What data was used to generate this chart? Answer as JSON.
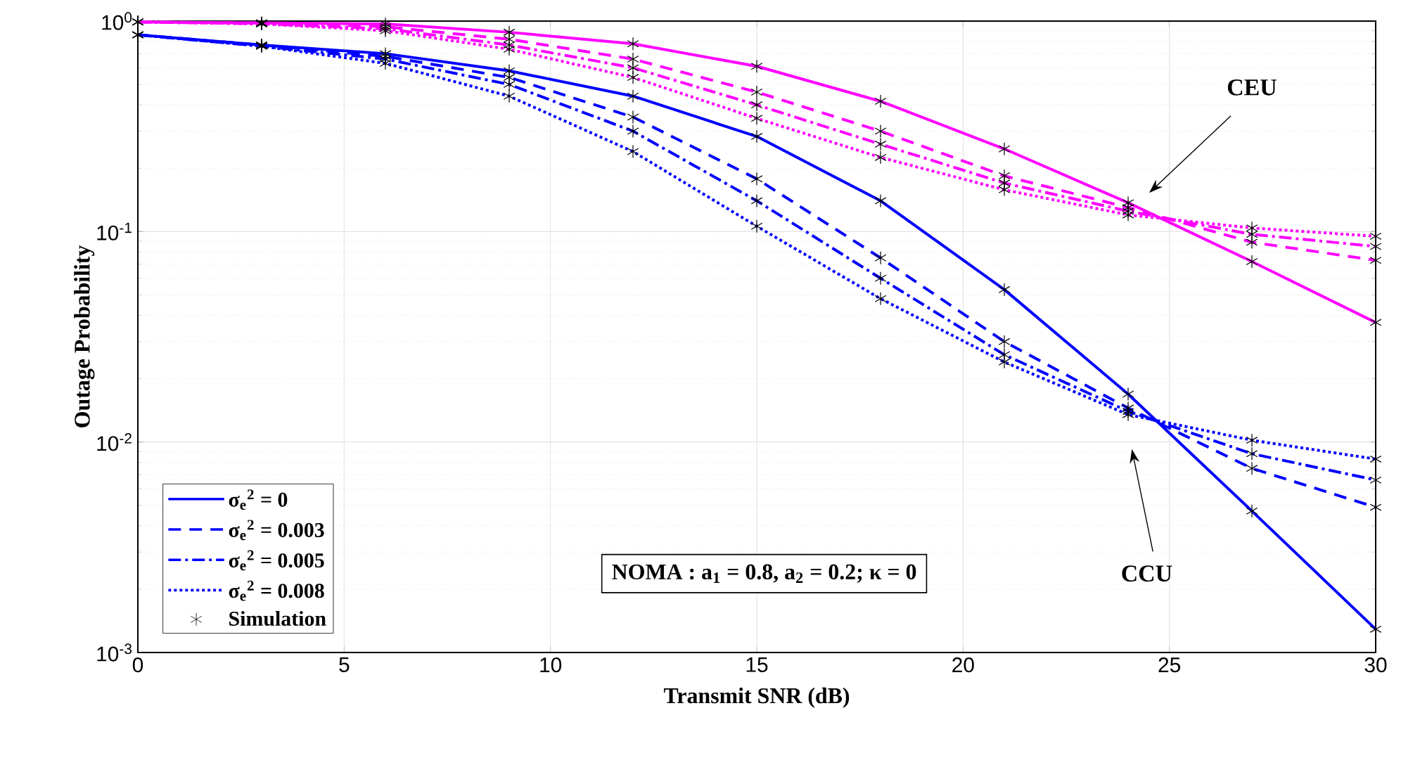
{
  "chart_data": {
    "type": "line",
    "xlabel": "Transmit SNR (dB)",
    "ylabel": "Outage Probability",
    "x": [
      0,
      3,
      6,
      9,
      12,
      15,
      18,
      21,
      24,
      27,
      30
    ],
    "series": [
      {
        "name": "σ$_{e}$$^{2}$ = 0",
        "color": "#0000ff",
        "line_style": "solid",
        "values": [
          0.86,
          0.77,
          0.7,
          0.58,
          0.44,
          0.283,
          0.14,
          0.053,
          0.0169,
          0.0047,
          0.00129
        ]
      },
      {
        "name": "σ$_{e}$$^{2}$ = 0.003",
        "color": "#0000ff",
        "line_style": "dashed",
        "values": [
          0.86,
          0.77,
          0.68,
          0.54,
          0.35,
          0.178,
          0.075,
          0.03,
          0.0145,
          0.0075,
          0.0049
        ]
      },
      {
        "name": "σ$_{e}$$^{2}$ = 0.005",
        "color": "#0000ff",
        "line_style": "dashdot",
        "values": [
          0.86,
          0.76,
          0.66,
          0.5,
          0.3,
          0.14,
          0.06,
          0.026,
          0.014,
          0.0088,
          0.0066
        ]
      },
      {
        "name": "σ$_{e}$$^{2}$ = 0.008",
        "color": "#0000ff",
        "line_style": "dotted",
        "values": [
          0.86,
          0.76,
          0.63,
          0.44,
          0.24,
          0.106,
          0.048,
          0.024,
          0.0135,
          0.0102,
          0.0083
        ]
      },
      {
        "color": "#ff00ff",
        "line_style": "solid",
        "values": [
          0.99,
          0.98,
          0.97,
          0.885,
          0.78,
          0.61,
          0.416,
          0.247,
          0.137,
          0.072,
          0.037
        ]
      },
      {
        "color": "#ff00ff",
        "line_style": "dashed",
        "values": [
          0.99,
          0.98,
          0.94,
          0.82,
          0.66,
          0.46,
          0.3,
          0.184,
          0.13,
          0.089,
          0.073
        ]
      },
      {
        "color": "#ff00ff",
        "line_style": "dashdot",
        "values": [
          0.99,
          0.97,
          0.92,
          0.77,
          0.6,
          0.4,
          0.26,
          0.17,
          0.125,
          0.097,
          0.085
        ]
      },
      {
        "color": "#ff00ff",
        "line_style": "dotted",
        "values": [
          0.99,
          0.97,
          0.9,
          0.735,
          0.54,
          0.345,
          0.225,
          0.158,
          0.12,
          0.104,
          0.095
        ]
      },
      {
        "name": "Simulation",
        "type": "scatter",
        "marker": "cross",
        "color": "#000000",
        "x": [
          0,
          3,
          6,
          9,
          12,
          15,
          18,
          21,
          24,
          27,
          30,
          0,
          3,
          6,
          9,
          12,
          15,
          18,
          21,
          24,
          27,
          30,
          0,
          3,
          6,
          9,
          12,
          15,
          18,
          21,
          24,
          27,
          30,
          0,
          3,
          6,
          9,
          12,
          15,
          18,
          21,
          24,
          27,
          30,
          0,
          3,
          6,
          9,
          12,
          15,
          18,
          21,
          24,
          27,
          30,
          0,
          3,
          6,
          9,
          12,
          15,
          18,
          21,
          24,
          27,
          30,
          0,
          3,
          6,
          9,
          12,
          15,
          18,
          21,
          24,
          27,
          30,
          0,
          3,
          6,
          9,
          12,
          15,
          18,
          21,
          24,
          27,
          30
        ],
        "values": [
          0.86,
          0.77,
          0.7,
          0.58,
          0.44,
          0.283,
          0.14,
          0.053,
          0.0169,
          0.0047,
          0.00129,
          0.86,
          0.77,
          0.68,
          0.54,
          0.35,
          0.178,
          0.075,
          0.03,
          0.0145,
          0.0075,
          0.0049,
          0.86,
          0.76,
          0.66,
          0.5,
          0.3,
          0.14,
          0.06,
          0.026,
          0.014,
          0.0088,
          0.0066,
          0.86,
          0.76,
          0.63,
          0.44,
          0.24,
          0.106,
          0.048,
          0.024,
          0.0135,
          0.0102,
          0.0083,
          0.99,
          0.98,
          0.97,
          0.885,
          0.78,
          0.61,
          0.416,
          0.247,
          0.137,
          0.072,
          0.037,
          0.99,
          0.98,
          0.94,
          0.82,
          0.66,
          0.46,
          0.3,
          0.184,
          0.13,
          0.089,
          0.073,
          0.99,
          0.97,
          0.92,
          0.77,
          0.6,
          0.4,
          0.26,
          0.17,
          0.125,
          0.097,
          0.085,
          0.99,
          0.97,
          0.9,
          0.735,
          0.54,
          0.345,
          0.225,
          0.158,
          0.12,
          0.104,
          0.095
        ]
      }
    ],
    "xlim": [
      0,
      30
    ],
    "ylim": [
      0.001,
      1
    ],
    "xticks": [
      0,
      5,
      10,
      15,
      20,
      25,
      30
    ],
    "yticks": [
      {
        "value": 0.001,
        "label": "10$^{-3}$"
      },
      {
        "value": 0.01,
        "label": "10$^{-2}$"
      },
      {
        "value": 0.1,
        "label": "10$^{-1}$"
      },
      {
        "value": 1,
        "label": "10$^{0}$"
      }
    ],
    "log": "y",
    "grid": true,
    "legend": "bottom left",
    "annotations": [
      "CEU",
      "CCU",
      "NOMA : a$_{1}$ = 0.8, a$_{2}$ = 0.2; κ = 0"
    ]
  }
}
